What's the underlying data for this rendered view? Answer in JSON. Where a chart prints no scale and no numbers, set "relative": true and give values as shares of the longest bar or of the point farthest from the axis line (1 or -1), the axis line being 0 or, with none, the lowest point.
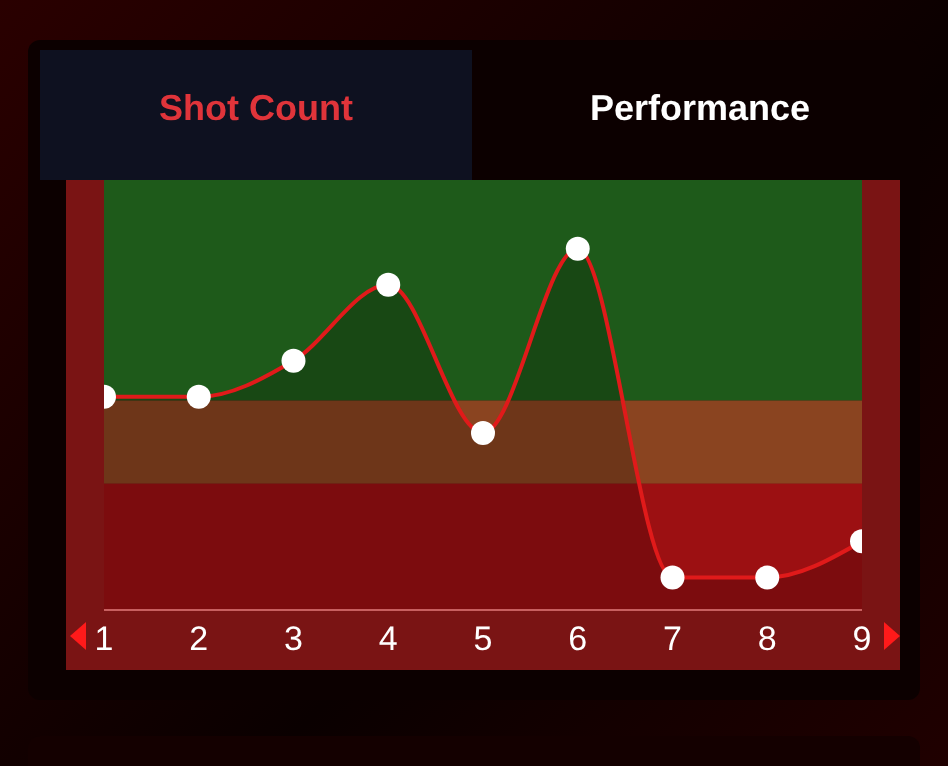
{
  "chart_data": {
    "type": "area",
    "relative": true,
    "annotations": [
      "Shot Count",
      "Performance"
    ],
    "categories": [
      "1",
      "2",
      "3",
      "4",
      "5",
      "6",
      "7",
      "8",
      "9"
    ],
    "series": [
      {
        "color": "#e01a1a",
        "values": [
          0.59,
          0.59,
          0.69,
          0.9,
          0.49,
          1,
          0.09,
          0.09,
          0.19
        ]
      }
    ],
    "marker": "circle",
    "bands": [
      {
        "axis": "y",
        "from": 0,
        "to": 0.35,
        "color": "#9c1012"
      },
      {
        "axis": "y",
        "from": 0.35,
        "to": 0.58,
        "color": "#8a4420"
      },
      {
        "axis": "y",
        "from": 0.58,
        "to": 1.19,
        "color": "#1e5a1a"
      }
    ]
  }
}
